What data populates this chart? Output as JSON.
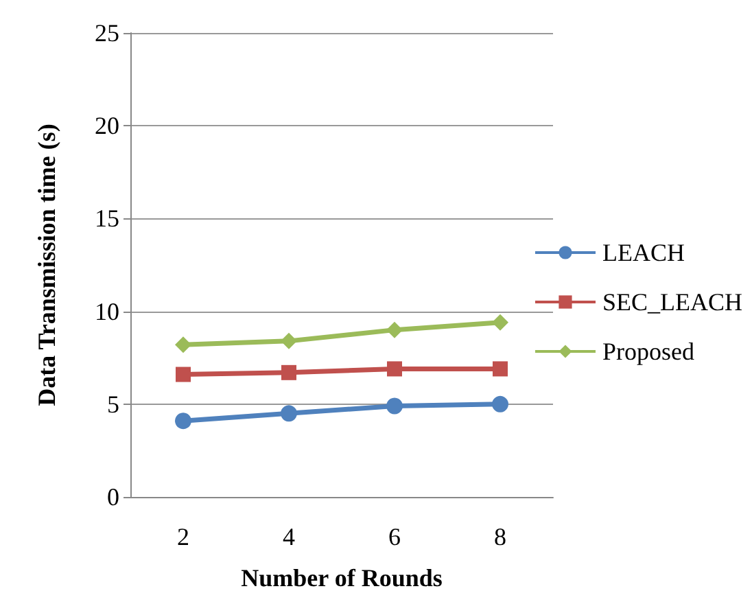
{
  "chart_data": {
    "type": "line",
    "xlabel": "Number of Rounds",
    "ylabel": "Data Transmission time (s)",
    "categories": [
      "2",
      "4",
      "6",
      "8"
    ],
    "series": [
      {
        "name": "LEACH",
        "color": "#4f81bd",
        "marker": "circle",
        "values": [
          4.1,
          4.5,
          4.9,
          5.0
        ]
      },
      {
        "name": "SEC_LEACH",
        "color": "#c0504d",
        "marker": "square",
        "values": [
          6.6,
          6.7,
          6.9,
          6.9
        ]
      },
      {
        "name": "Proposed",
        "color": "#9bbb59",
        "marker": "diamond",
        "values": [
          8.2,
          8.4,
          9.0,
          9.4
        ]
      }
    ],
    "ylim": [
      0,
      25
    ],
    "yticks": [
      0,
      5,
      10,
      15,
      20,
      25
    ],
    "grid": "y",
    "legend": "right"
  }
}
